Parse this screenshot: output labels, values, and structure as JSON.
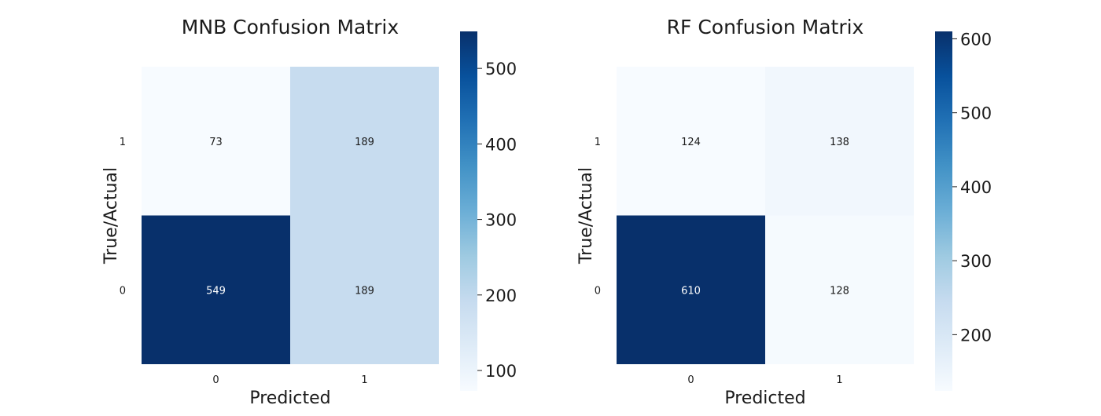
{
  "chart_data": [
    {
      "type": "heatmap",
      "title": "MNB Confusion Matrix",
      "xlabel": "Predicted",
      "ylabel": "True/Actual",
      "x_tick_labels": [
        "0",
        "1"
      ],
      "y_tick_labels_top_to_bottom": [
        "1",
        "0"
      ],
      "cells": [
        {
          "row": "1",
          "col": "0",
          "value": 73
        },
        {
          "row": "1",
          "col": "1",
          "value": 189
        },
        {
          "row": "0",
          "col": "0",
          "value": 549
        },
        {
          "row": "0",
          "col": "1",
          "value": 189
        }
      ],
      "colorbar": {
        "ticks": [
          "100",
          "200",
          "300",
          "400",
          "500"
        ],
        "range": [
          73,
          549
        ],
        "colormap": "Blues"
      },
      "grid": false
    },
    {
      "type": "heatmap",
      "title": "RF Confusion Matrix",
      "xlabel": "Predicted",
      "ylabel": "True/Actual",
      "x_tick_labels": [
        "0",
        "1"
      ],
      "y_tick_labels_top_to_bottom": [
        "1",
        "0"
      ],
      "cells": [
        {
          "row": "1",
          "col": "0",
          "value": 124
        },
        {
          "row": "1",
          "col": "1",
          "value": 138
        },
        {
          "row": "0",
          "col": "0",
          "value": 610
        },
        {
          "row": "0",
          "col": "1",
          "value": 128
        }
      ],
      "colorbar": {
        "ticks": [
          "200",
          "300",
          "400",
          "500",
          "600"
        ],
        "range": [
          124,
          610
        ],
        "colormap": "Blues"
      },
      "grid": false
    }
  ]
}
